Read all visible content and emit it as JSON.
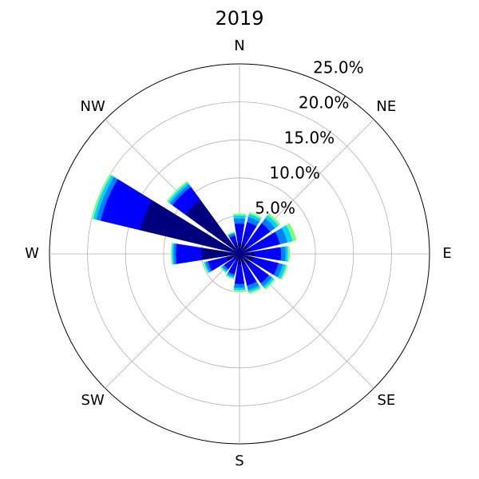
{
  "chart_data": {
    "type": "windrose",
    "title": "2019",
    "categories": [
      "N",
      null,
      "NE",
      null,
      "E",
      null,
      "SE",
      null,
      "S",
      null,
      "SW",
      null,
      "W",
      null,
      "NW",
      null
    ],
    "series": [
      {
        "color": "#00007f",
        "values": [
          1.5,
          1.5,
          1.5,
          1.5,
          2.0,
          2.0,
          1.8,
          1.5,
          1.5,
          1.0,
          1.0,
          1.8,
          5.0,
          13.5,
          8.8,
          1.5
        ]
      },
      {
        "color": "#0000ff",
        "values": [
          2.5,
          2.8,
          3.5,
          4.0,
          3.5,
          3.3,
          3.0,
          2.8,
          2.5,
          1.8,
          1.5,
          2.5,
          3.4,
          5.3,
          2.1,
          1.0
        ]
      },
      {
        "color": "#007fff",
        "values": [
          0.7,
          0.7,
          0.8,
          1.0,
          0.6,
          0.6,
          0.5,
          0.6,
          0.5,
          0.3,
          0.3,
          0.3,
          0.3,
          0.6,
          0.4,
          0.3
        ]
      },
      {
        "color": "#00d4ff",
        "values": [
          0.4,
          0.4,
          0.5,
          0.7,
          0.3,
          0.4,
          0.3,
          0.3,
          0.3,
          0.2,
          0.2,
          0.2,
          0.2,
          0.4,
          0.3,
          0.1
        ]
      },
      {
        "color": "#7dff7a",
        "values": [
          0.2,
          0.2,
          0.3,
          0.5,
          0.2,
          0.2,
          0.2,
          0.2,
          0.2,
          0.1,
          0.1,
          0.1,
          0.1,
          0.2,
          0.2,
          0.1
        ]
      }
    ],
    "rlim": [
      0,
      25
    ],
    "rticks": [
      {
        "value": 5,
        "label": "5.0%"
      },
      {
        "value": 10,
        "label": "10.0%"
      },
      {
        "value": 15,
        "label": "15.0%"
      },
      {
        "value": 20,
        "label": "20.0%"
      },
      {
        "value": 25,
        "label": "25.0%"
      }
    ],
    "grid": true
  }
}
